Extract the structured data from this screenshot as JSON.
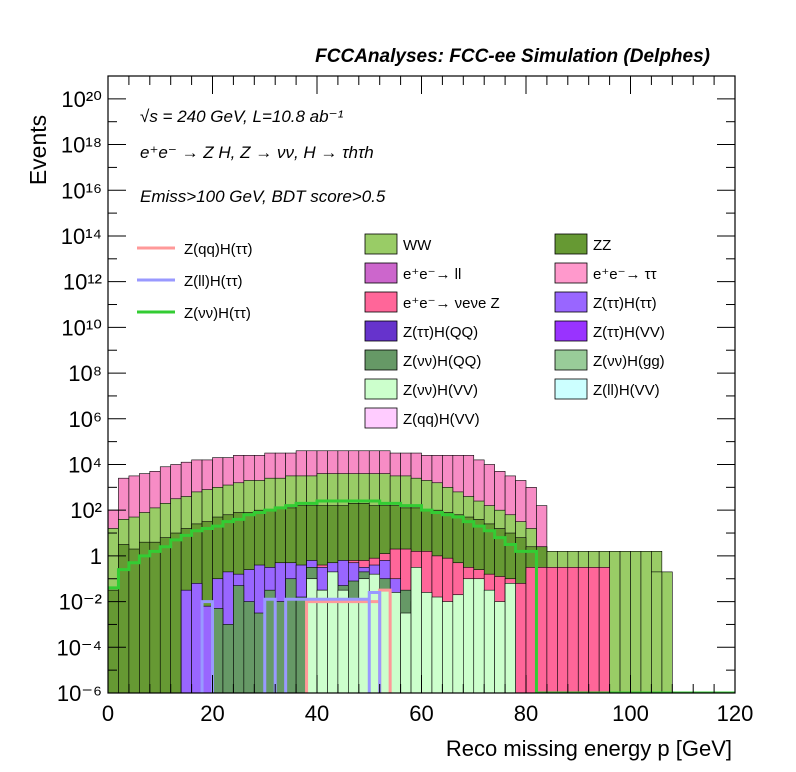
{
  "chart_data": {
    "type": "histogram",
    "title": "FCCAnalyses: FCC-ee Simulation (Delphes)",
    "xlabel": "Reco missing energy p [GeV]",
    "ylabel": "Events",
    "xlim": [
      0,
      120
    ],
    "ylim_log10": [
      -6,
      21
    ],
    "yscale": "log",
    "bin_width": 2,
    "annotations": [
      "√s = 240 GeV, L=10.8 ab⁻¹",
      "e⁺e⁻ → Z H, Z → νν, H → τhτh",
      "Emiss>100 GeV, BDT score>0.5"
    ],
    "x_ticks": [
      0,
      20,
      40,
      60,
      80,
      100,
      120
    ],
    "y_ticks": [
      {
        "exp": -6,
        "label": "10⁻⁶"
      },
      {
        "exp": -4,
        "label": "10⁻⁴"
      },
      {
        "exp": -2,
        "label": "10⁻²"
      },
      {
        "exp": 0,
        "label": "1"
      },
      {
        "exp": 2,
        "label": "10²"
      },
      {
        "exp": 4,
        "label": "10⁴"
      },
      {
        "exp": 6,
        "label": "10⁶"
      },
      {
        "exp": 8,
        "label": "10⁸"
      },
      {
        "exp": 10,
        "label": "10¹⁰"
      },
      {
        "exp": 12,
        "label": "10¹²"
      },
      {
        "exp": 14,
        "label": "10¹⁴"
      },
      {
        "exp": 16,
        "label": "10¹⁶"
      },
      {
        "exp": 18,
        "label": "10¹⁸"
      },
      {
        "exp": 20,
        "label": "10²⁰"
      }
    ],
    "stack_envelopes": [
      {
        "name": "e⁺e⁻→ ττ",
        "color": "#f78cc5",
        "log10_top": [
          2.0,
          3.4,
          3.5,
          3.6,
          3.7,
          3.9,
          4.0,
          4.1,
          4.2,
          4.2,
          4.3,
          4.3,
          4.4,
          4.4,
          4.4,
          4.5,
          4.5,
          4.5,
          4.6,
          4.6,
          4.6,
          4.6,
          4.6,
          4.6,
          4.6,
          4.6,
          4.6,
          4.5,
          4.5,
          4.5,
          4.4,
          4.4,
          4.4,
          4.4,
          4.4,
          4.2,
          4.0,
          3.7,
          3.5,
          3.3,
          3.0,
          2.2,
          null,
          null,
          null,
          null,
          null,
          null,
          null,
          null,
          null,
          null,
          null,
          null,
          null,
          null,
          null,
          null,
          null,
          null
        ]
      },
      {
        "name": "WW",
        "color": "#99cc66",
        "log10_top": [
          1.2,
          1.6,
          1.7,
          1.9,
          2.1,
          2.3,
          2.5,
          2.6,
          2.8,
          2.9,
          3.0,
          3.1,
          3.2,
          3.3,
          3.3,
          3.4,
          3.4,
          3.5,
          3.5,
          3.5,
          3.6,
          3.6,
          3.6,
          3.6,
          3.6,
          3.6,
          3.6,
          3.5,
          3.5,
          3.4,
          3.3,
          3.2,
          3.0,
          2.8,
          2.6,
          2.4,
          2.2,
          2.0,
          1.8,
          1.5,
          1.2,
          0.4,
          0.2,
          0.2,
          0.2,
          0.2,
          0.2,
          0.2,
          0.2,
          0.2,
          0.2,
          0.2,
          0.2,
          -0.7,
          null,
          null,
          null,
          null,
          null,
          null
        ]
      },
      {
        "name": "ZZ",
        "color": "#669933",
        "log10_top": [
          -1.5,
          0.5,
          0.3,
          0.6,
          0.6,
          0.8,
          1.0,
          1.2,
          1.4,
          1.5,
          1.7,
          1.8,
          1.9,
          1.9,
          2.0,
          2.0,
          2.1,
          2.1,
          2.2,
          2.2,
          2.2,
          2.2,
          2.2,
          2.3,
          2.3,
          2.2,
          2.2,
          2.2,
          2.1,
          2.1,
          2.0,
          2.0,
          1.9,
          1.8,
          1.7,
          1.6,
          1.4,
          1.2,
          1.0,
          0.8,
          0.4,
          0.4,
          null,
          null,
          null,
          null,
          null,
          null,
          null,
          null,
          null,
          null,
          null,
          null,
          null,
          null,
          null,
          null,
          null,
          null
        ]
      },
      {
        "name": "e⁺e⁻→ νeνe Z",
        "color": "#ff6699",
        "log10_top": [
          null,
          null,
          null,
          null,
          null,
          null,
          null,
          null,
          null,
          null,
          null,
          null,
          null,
          null,
          null,
          null,
          null,
          null,
          null,
          null,
          -0.4,
          -0.4,
          -0.3,
          -0.2,
          -0.2,
          -0.1,
          0.1,
          0.3,
          0.3,
          0.2,
          0.2,
          0.0,
          -0.1,
          -0.3,
          -0.5,
          -0.6,
          -0.8,
          -0.9,
          -1.0,
          -1.2,
          -0.5,
          -0.5,
          -0.5,
          -0.5,
          -0.5,
          -0.5,
          -0.5,
          -0.5,
          null,
          null,
          null,
          null,
          null,
          null,
          null,
          null,
          null,
          null,
          null,
          null
        ]
      },
      {
        "name": "Z(ττ)H(ττ)",
        "color": "#9966ff",
        "log10_top": [
          null,
          null,
          null,
          null,
          null,
          null,
          null,
          -1.5,
          -1.2,
          -2.2,
          -1.0,
          -0.7,
          -0.8,
          -0.6,
          -0.4,
          -0.5,
          -0.3,
          -0.3,
          -0.4,
          -0.2,
          -0.5,
          -0.3,
          -0.2,
          -0.3,
          -0.5,
          -0.4,
          -0.2,
          -1.0,
          -2.0,
          -1.5,
          -3.0,
          -2.5,
          null,
          null,
          null,
          null,
          null,
          null,
          null,
          null,
          null,
          null,
          null,
          null,
          null,
          null,
          null,
          null,
          null,
          null,
          null,
          null,
          null,
          null,
          null,
          null,
          null,
          null,
          null,
          null
        ]
      },
      {
        "name": "Z(νν)H(QQ)",
        "color": "#669966",
        "log10_top": [
          null,
          null,
          null,
          null,
          null,
          null,
          null,
          null,
          null,
          null,
          -2.3,
          -3.0,
          -1.3,
          -2.0,
          -2.5,
          -1.5,
          -2.0,
          -1.0,
          -1.8,
          -0.5,
          -1.5,
          -0.8,
          -1.3,
          -1.1,
          -0.7,
          -1.3,
          -1.0,
          -2.0,
          -1.5,
          -2.0,
          -3.5,
          null,
          null,
          null,
          null,
          null,
          null,
          null,
          null,
          null,
          null,
          null,
          null,
          null,
          null,
          null,
          null,
          null,
          null,
          null,
          null,
          null,
          null,
          null,
          null,
          null,
          null,
          null,
          null,
          null
        ]
      },
      {
        "name": "Z(νν)H(VV)",
        "color": "#ccffcc",
        "log10_top": [
          null,
          null,
          null,
          null,
          null,
          null,
          null,
          null,
          null,
          null,
          null,
          null,
          null,
          null,
          null,
          null,
          null,
          null,
          null,
          -1.0,
          -1.5,
          -0.7,
          -1.5,
          -2.0,
          -1.0,
          -0.8,
          -1.5,
          -1.6,
          -2.5,
          -0.5,
          -1.6,
          -1.8,
          -2.0,
          -1.7,
          -1.0,
          -1.0,
          -1.5,
          -2.0,
          -1.2,
          null,
          null,
          null,
          null,
          null,
          null,
          null,
          null,
          null,
          null,
          null,
          null,
          null,
          null,
          null,
          null,
          null,
          null,
          null,
          null,
          null
        ]
      }
    ],
    "overlay_lines": [
      {
        "name": "Z(qq)H(ττ)",
        "color": "#ff9999",
        "bins": [
          [
            19,
            26,
            -2
          ],
          [
            26,
            27,
            -1.5
          ]
        ],
        "baseline": -6
      },
      {
        "name": "Z(ll)H(ττ)",
        "color": "#9999ff",
        "bins": [
          [
            9,
            10,
            -2
          ],
          [
            15,
            16,
            -1.9
          ],
          [
            17,
            25,
            -1.9
          ],
          [
            25,
            26,
            -1.6
          ]
        ],
        "baseline": -6
      },
      {
        "name": "Z(νν)H(ττ)",
        "color": "#33cc33",
        "log10_top": [
          -1.4,
          -0.6,
          -0.3,
          0.0,
          0.2,
          0.4,
          0.7,
          0.9,
          1.1,
          1.2,
          1.3,
          1.5,
          1.6,
          1.8,
          1.9,
          2.0,
          2.1,
          2.2,
          2.3,
          2.3,
          2.4,
          2.4,
          2.4,
          2.4,
          2.4,
          2.4,
          2.3,
          2.3,
          2.2,
          2.2,
          2.0,
          1.9,
          1.8,
          1.7,
          1.5,
          1.3,
          1.1,
          0.8,
          0.5,
          0.2,
          0.2,
          null,
          null,
          null,
          null,
          null,
          null,
          null,
          null,
          null,
          null,
          null,
          null,
          null,
          null,
          null,
          null,
          null,
          null,
          null
        ]
      }
    ],
    "isolated_bins": [
      {
        "name": "WW",
        "color": "#99cc66",
        "x0": 104,
        "x1": 106,
        "log10_top": -0.7
      }
    ],
    "legend_left": [
      {
        "label": "Z(qq)H(ττ)",
        "color": "#ff9999"
      },
      {
        "label": "Z(ll)H(ττ)",
        "color": "#9999ff"
      },
      {
        "label": "Z(νν)H(ττ)",
        "color": "#33cc33"
      }
    ],
    "legend_mid": [
      {
        "label": "WW",
        "color": "#99cc66"
      },
      {
        "label": "e⁺e⁻→ ll",
        "color": "#cc66cc"
      },
      {
        "label": "e⁺e⁻→ νeνe Z",
        "color": "#ff6699"
      },
      {
        "label": "Z(ττ)H(QQ)",
        "color": "#6633cc"
      },
      {
        "label": "Z(νν)H(QQ)",
        "color": "#669966"
      },
      {
        "label": "Z(νν)H(VV)",
        "color": "#ccffcc"
      },
      {
        "label": "Z(qq)H(VV)",
        "color": "#ffccff"
      }
    ],
    "legend_right": [
      {
        "label": "ZZ",
        "color": "#669933"
      },
      {
        "label": "e⁺e⁻→ ττ",
        "color": "#ff99cc"
      },
      {
        "label": "Z(ττ)H(ττ)",
        "color": "#9966ff"
      },
      {
        "label": "Z(ττ)H(VV)",
        "color": "#9933ff"
      },
      {
        "label": "Z(νν)H(gg)",
        "color": "#99cc99"
      },
      {
        "label": "Z(ll)H(VV)",
        "color": "#ccffff"
      }
    ]
  }
}
